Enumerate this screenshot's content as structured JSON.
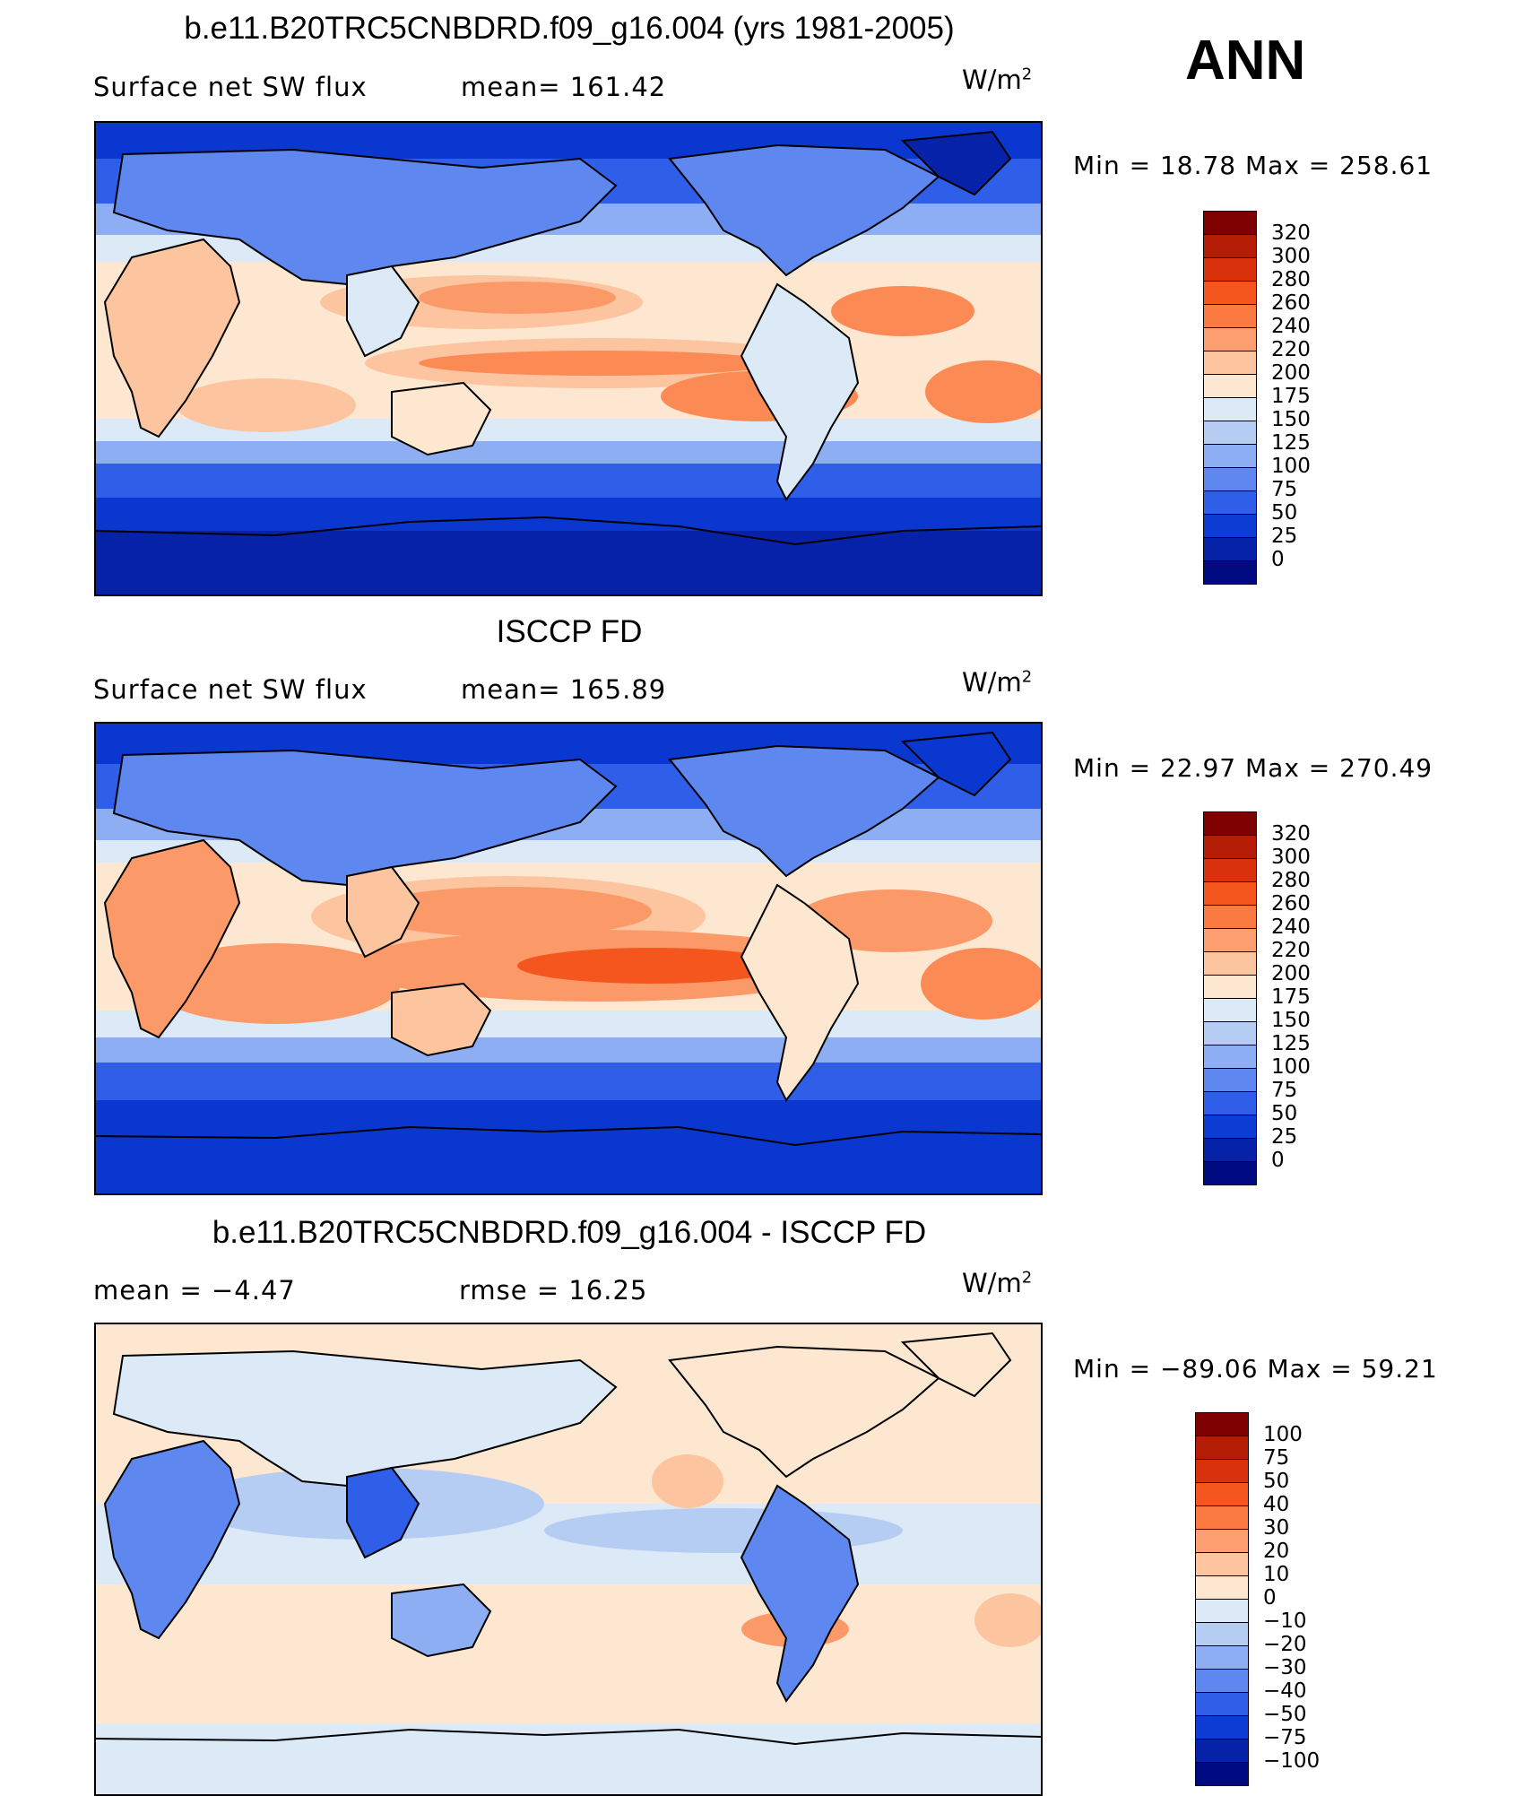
{
  "season": "ANN",
  "panels": [
    {
      "title": "b.e11.B20TRC5CNBDRD.f09_g16.004 (yrs 1981-2005)",
      "left_label": "Surface net SW flux",
      "mid_label": "mean=  161.42",
      "units": "W/m",
      "units_sup": "2",
      "minmax": "Min =   18.78 Max = 258.61",
      "colorbar": {
        "labels": [
          "320",
          "300",
          "280",
          "260",
          "240",
          "220",
          "200",
          "175",
          "150",
          "125",
          "100",
          "75",
          "50",
          "25",
          "0"
        ],
        "colors": [
          "#7f0000",
          "#b51c05",
          "#d8310b",
          "#f5561d",
          "#fb7a42",
          "#fc9e70",
          "#fdc4a0",
          "#fde7d0",
          "#dce9f7",
          "#b5cdf3",
          "#8daef2",
          "#5e88f0",
          "#2f5fe8",
          "#0d3dd4",
          "#0522a8",
          "#000a80"
        ]
      }
    },
    {
      "title": "ISCCP FD",
      "left_label": "Surface net SW flux",
      "mid_label": "mean=  165.89",
      "units": "W/m",
      "units_sup": "2",
      "minmax": "Min =   22.97 Max = 270.49",
      "colorbar": {
        "labels": [
          "320",
          "300",
          "280",
          "260",
          "240",
          "220",
          "200",
          "175",
          "150",
          "125",
          "100",
          "75",
          "50",
          "25",
          "0"
        ],
        "colors": [
          "#7f0000",
          "#b51c05",
          "#d8310b",
          "#f5561d",
          "#fb7a42",
          "#fc9e70",
          "#fdc4a0",
          "#fde7d0",
          "#dce9f7",
          "#b5cdf3",
          "#8daef2",
          "#5e88f0",
          "#2f5fe8",
          "#0d3dd4",
          "#0522a8",
          "#000a80"
        ]
      }
    },
    {
      "title": "b.e11.B20TRC5CNBDRD.f09_g16.004 - ISCCP FD",
      "left_label": "mean =   −4.47",
      "mid_label": "rmse =   16.25",
      "units": "W/m",
      "units_sup": "2",
      "minmax": "Min = −89.06 Max =   59.21",
      "colorbar": {
        "labels": [
          "100",
          "75",
          "50",
          "40",
          "30",
          "20",
          "10",
          "0",
          "−10",
          "−20",
          "−30",
          "−40",
          "−50",
          "−75",
          "−100"
        ],
        "colors": [
          "#7f0000",
          "#b51c05",
          "#d8310b",
          "#f5561d",
          "#fb7a42",
          "#fc9e70",
          "#fdc4a0",
          "#fde7d0",
          "#dce9f7",
          "#b5cdf3",
          "#8daef2",
          "#5e88f0",
          "#2f5fe8",
          "#0d3dd4",
          "#0522a8",
          "#000a80"
        ]
      }
    }
  ],
  "colors": {
    "ocean_deep": "#0a37d0",
    "ocean_mid": "#2f5fe8",
    "light_blue": "#8daef2",
    "pale_blue": "#dce9f7",
    "cream": "#fde7d0",
    "peach": "#fdc4a0",
    "salmon": "#fb7a42"
  }
}
